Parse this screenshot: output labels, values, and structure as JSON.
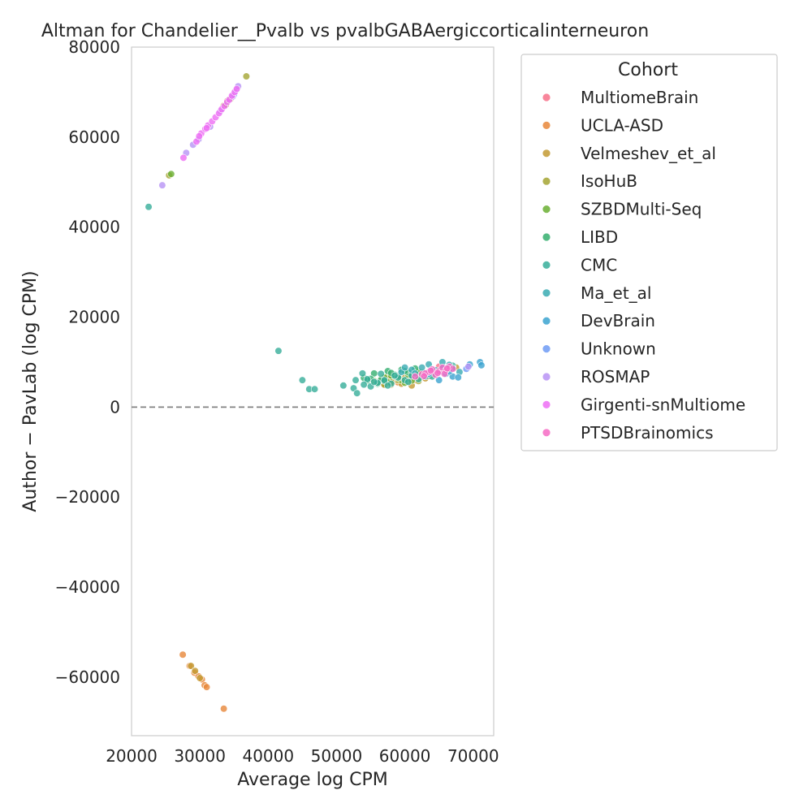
{
  "chart_data": {
    "type": "scatter",
    "title": "Altman for Chandelier__Pvalb vs pvalbGABAergiccorticalinterneuron",
    "xlabel": "Average log CPM",
    "ylabel": "Author − PavLab (log CPM)",
    "xlim": [
      20000,
      73000
    ],
    "ylim": [
      -73000,
      80000
    ],
    "xticks": [
      20000,
      30000,
      40000,
      50000,
      60000,
      70000
    ],
    "yticks": [
      -60000,
      -40000,
      -20000,
      0,
      20000,
      40000,
      60000,
      80000
    ],
    "xtick_labels": [
      "20000",
      "30000",
      "40000",
      "50000",
      "60000",
      "70000"
    ],
    "ytick_labels": [
      "−60000",
      "−40000",
      "−20000",
      "0",
      "20000",
      "40000",
      "60000",
      "80000"
    ],
    "reference_line": {
      "y": 0,
      "style": "dashed",
      "color": "#808080"
    },
    "grid": false,
    "legend": {
      "title": "Cohort",
      "placement": "outside-right"
    },
    "series": [
      {
        "name": "MultiomeBrain",
        "color": "#f77189",
        "points": [
          [
            61000,
            6500
          ],
          [
            62500,
            7500
          ],
          [
            64000,
            8000
          ],
          [
            66000,
            8500
          ],
          [
            65000,
            9000
          ],
          [
            63000,
            7000
          ]
        ]
      },
      {
        "name": "UCLA-ASD",
        "color": "#e7873a",
        "points": [
          [
            27500,
            -55000
          ],
          [
            28500,
            -57500
          ],
          [
            29200,
            -59000
          ],
          [
            29800,
            -59800
          ],
          [
            30300,
            -60500
          ],
          [
            30700,
            -61800
          ],
          [
            31000,
            -62200
          ],
          [
            33500,
            -67000
          ],
          [
            57000,
            5000
          ],
          [
            59000,
            5500
          ],
          [
            61500,
            6000
          ],
          [
            63000,
            6500
          ],
          [
            60500,
            7000
          ],
          [
            58000,
            6200
          ]
        ]
      },
      {
        "name": "Velmeshev_et_al",
        "color": "#c39a32",
        "points": [
          [
            28700,
            -57500
          ],
          [
            29300,
            -58600
          ],
          [
            30000,
            -60200
          ],
          [
            34000,
            68000
          ],
          [
            33500,
            67000
          ],
          [
            56000,
            5500
          ],
          [
            58500,
            6000
          ],
          [
            60000,
            6500
          ],
          [
            61000,
            4800
          ],
          [
            62000,
            7000
          ],
          [
            59500,
            5200
          ],
          [
            57500,
            6800
          ],
          [
            63000,
            6400
          ],
          [
            66500,
            8500
          ],
          [
            67500,
            8800
          ],
          [
            60500,
            5800
          ],
          [
            58000,
            5000
          ]
        ]
      },
      {
        "name": "IsoHuB",
        "color": "#a4a533",
        "points": [
          [
            36800,
            73500
          ],
          [
            34500,
            68500
          ],
          [
            33800,
            67200
          ],
          [
            25500,
            51500
          ],
          [
            57000,
            5000
          ],
          [
            59000,
            6000
          ],
          [
            60500,
            6500
          ],
          [
            62000,
            5800
          ],
          [
            63500,
            7200
          ],
          [
            61000,
            6800
          ],
          [
            58000,
            5600
          ]
        ]
      },
      {
        "name": "SZBDMulti-Seq",
        "color": "#6aaf33",
        "points": [
          [
            25800,
            51800
          ],
          [
            55500,
            5800
          ],
          [
            56500,
            6200
          ],
          [
            57500,
            5500
          ],
          [
            58500,
            6800
          ],
          [
            59500,
            6000
          ],
          [
            60500,
            7200
          ],
          [
            61500,
            6600
          ],
          [
            62500,
            7600
          ],
          [
            63500,
            6900
          ],
          [
            60000,
            5400
          ],
          [
            58000,
            7000
          ],
          [
            59000,
            6400
          ],
          [
            61000,
            5900
          ],
          [
            57000,
            6600
          ],
          [
            62000,
            7900
          ],
          [
            64000,
            7300
          ]
        ]
      },
      {
        "name": "LIBD",
        "color": "#35af6f",
        "points": [
          [
            54000,
            6500
          ],
          [
            55500,
            7500
          ],
          [
            56500,
            6000
          ],
          [
            57500,
            8000
          ],
          [
            58500,
            7200
          ],
          [
            59500,
            8300
          ],
          [
            60500,
            7700
          ],
          [
            61500,
            8600
          ],
          [
            62500,
            7000
          ],
          [
            57000,
            5800
          ],
          [
            59000,
            6900
          ],
          [
            60000,
            8000
          ],
          [
            61000,
            7100
          ],
          [
            58000,
            7600
          ],
          [
            56000,
            5200
          ],
          [
            54500,
            5900
          ],
          [
            55000,
            6300
          ]
        ]
      },
      {
        "name": "CMC",
        "color": "#37ae9a",
        "points": [
          [
            22500,
            44500
          ],
          [
            41500,
            12500
          ],
          [
            45000,
            6000
          ],
          [
            46000,
            4000
          ],
          [
            46800,
            4000
          ],
          [
            51000,
            4800
          ],
          [
            52500,
            4200
          ],
          [
            53000,
            3100
          ],
          [
            52800,
            6000
          ],
          [
            53800,
            7500
          ],
          [
            54500,
            6200
          ],
          [
            55000,
            4600
          ],
          [
            56000,
            5400
          ],
          [
            57000,
            6000
          ],
          [
            58000,
            5200
          ],
          [
            59000,
            6600
          ],
          [
            60000,
            6000
          ],
          [
            61000,
            7000
          ],
          [
            62000,
            6200
          ],
          [
            63000,
            7600
          ],
          [
            64000,
            6800
          ],
          [
            65000,
            7800
          ],
          [
            66000,
            8600
          ],
          [
            67000,
            9200
          ],
          [
            56500,
            7400
          ],
          [
            58500,
            7000
          ],
          [
            60500,
            5600
          ],
          [
            54000,
            5000
          ],
          [
            55500,
            5600
          ],
          [
            57500,
            4800
          ]
        ]
      },
      {
        "name": "Ma_et_al",
        "color": "#39abb3",
        "points": [
          [
            59500,
            7800
          ],
          [
            61000,
            8300
          ],
          [
            62500,
            8800
          ],
          [
            63500,
            9500
          ],
          [
            64500,
            8200
          ],
          [
            65500,
            10000
          ],
          [
            66500,
            9400
          ],
          [
            67000,
            8700
          ],
          [
            68000,
            7800
          ],
          [
            63000,
            6800
          ],
          [
            61500,
            7500
          ],
          [
            60000,
            8800
          ]
        ]
      },
      {
        "name": "DevBrain",
        "color": "#3ba3d0",
        "points": [
          [
            64000,
            8200
          ],
          [
            65000,
            6000
          ],
          [
            66000,
            7400
          ],
          [
            67000,
            6800
          ],
          [
            67800,
            6600
          ],
          [
            69500,
            9500
          ],
          [
            71000,
            10000
          ],
          [
            71200,
            9300
          ],
          [
            66500,
            7900
          ],
          [
            63500,
            7400
          ],
          [
            65500,
            8600
          ]
        ]
      },
      {
        "name": "Unknown",
        "color": "#6e9bf4",
        "points": [
          [
            35000,
            69500
          ],
          [
            35200,
            70200
          ],
          [
            69000,
            8500
          ]
        ]
      },
      {
        "name": "ROSMAP",
        "color": "#b893f5",
        "points": [
          [
            24500,
            49300
          ],
          [
            28000,
            56500
          ],
          [
            29000,
            58300
          ],
          [
            29800,
            59500
          ],
          [
            31500,
            62300
          ],
          [
            33000,
            65800
          ],
          [
            34800,
            69000
          ],
          [
            35300,
            70400
          ],
          [
            35600,
            71300
          ],
          [
            69300,
            9000
          ]
        ]
      },
      {
        "name": "Girgenti-snMultiome",
        "color": "#ed6ef4",
        "points": [
          [
            27600,
            55400
          ],
          [
            29500,
            59000
          ],
          [
            30200,
            60800
          ],
          [
            30800,
            61800
          ],
          [
            31200,
            62600
          ],
          [
            31800,
            63500
          ],
          [
            32300,
            64400
          ],
          [
            32800,
            65300
          ],
          [
            33200,
            66200
          ],
          [
            33600,
            66900
          ],
          [
            34000,
            67800
          ],
          [
            34300,
            68300
          ],
          [
            34700,
            69200
          ],
          [
            35100,
            70000
          ],
          [
            35400,
            70700
          ],
          [
            29900,
            60200
          ],
          [
            31000,
            62000
          ]
        ]
      },
      {
        "name": "PTSDBrainomics",
        "color": "#f66bc4",
        "points": [
          [
            61500,
            6800
          ],
          [
            62500,
            7300
          ],
          [
            63500,
            7800
          ],
          [
            64000,
            8400
          ],
          [
            64500,
            7200
          ],
          [
            65000,
            8000
          ],
          [
            65500,
            8800
          ],
          [
            66000,
            8200
          ],
          [
            66500,
            9000
          ],
          [
            67000,
            8500
          ],
          [
            63000,
            7500
          ],
          [
            64800,
            7600
          ],
          [
            65800,
            7400
          ],
          [
            62800,
            6900
          ],
          [
            66200,
            8600
          ],
          [
            63800,
            8100
          ]
        ]
      }
    ]
  }
}
